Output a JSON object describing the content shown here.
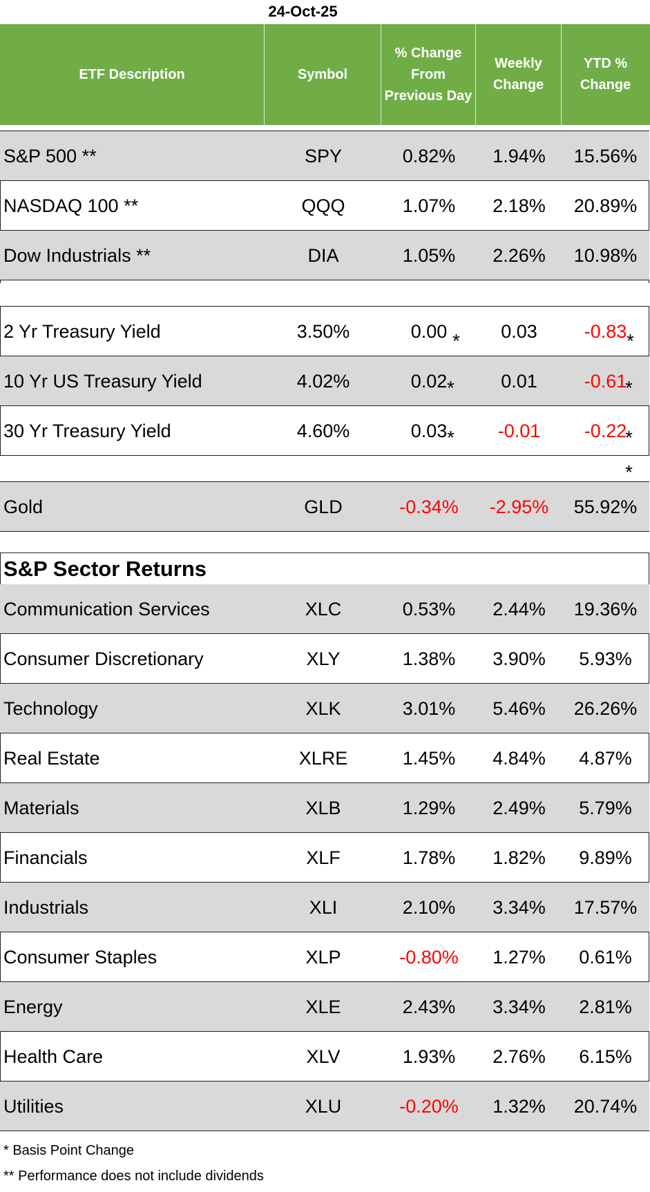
{
  "date": "24-Oct-25",
  "headers": {
    "description": "ETF Description",
    "symbol": "Symbol",
    "pct_change": "% Change\nFrom\nPrevious Day",
    "weekly": "Weekly\nChange",
    "ytd": "YTD %\nChange"
  },
  "indices": [
    {
      "name": "S&P 500 **",
      "symbol": "SPY",
      "day": "0.82%",
      "week": "1.94%",
      "ytd": "15.56%"
    },
    {
      "name": "NASDAQ 100 **",
      "symbol": "QQQ",
      "day": "1.07%",
      "week": "2.18%",
      "ytd": "20.89%"
    },
    {
      "name": "Dow Industrials **",
      "symbol": "DIA",
      "day": "1.05%",
      "week": "2.26%",
      "ytd": "10.98%"
    }
  ],
  "treasuries": [
    {
      "name": "2 Yr Treasury Yield",
      "symbol": "3.50%",
      "day": "0.00",
      "week": "0.03",
      "ytd": "-0.83"
    },
    {
      "name": "10 Yr US Treasury Yield",
      "symbol": "4.02%",
      "day": "0.02",
      "week": "0.01",
      "ytd": "-0.61"
    },
    {
      "name": "30 Yr Treasury Yield",
      "symbol": "4.60%",
      "day": "0.03",
      "week": "-0.01",
      "ytd": "-0.22"
    }
  ],
  "asterisk": "*",
  "gold": {
    "name": "Gold",
    "symbol": "GLD",
    "day": "-0.34%",
    "week": "-2.95%",
    "ytd": "55.92%"
  },
  "sector_title": "S&P Sector Returns",
  "sectors": [
    {
      "name": "Communication Services",
      "symbol": "XLC",
      "day": "0.53%",
      "week": "2.44%",
      "ytd": "19.36%"
    },
    {
      "name": "Consumer Discretionary",
      "symbol": "XLY",
      "day": "1.38%",
      "week": "3.90%",
      "ytd": "5.93%"
    },
    {
      "name": "Technology",
      "symbol": "XLK",
      "day": "3.01%",
      "week": "5.46%",
      "ytd": "26.26%"
    },
    {
      "name": "Real Estate",
      "symbol": "XLRE",
      "day": "1.45%",
      "week": "4.84%",
      "ytd": "4.87%"
    },
    {
      "name": "Materials",
      "symbol": "XLB",
      "day": "1.29%",
      "week": "2.49%",
      "ytd": "5.79%"
    },
    {
      "name": "Financials",
      "symbol": "XLF",
      "day": "1.78%",
      "week": "1.82%",
      "ytd": "9.89%"
    },
    {
      "name": "Industrials",
      "symbol": "XLI",
      "day": "2.10%",
      "week": "3.34%",
      "ytd": "17.57%"
    },
    {
      "name": "Consumer Staples",
      "symbol": "XLP",
      "day": "-0.80%",
      "week": "1.27%",
      "ytd": "0.61%"
    },
    {
      "name": "Energy",
      "symbol": "XLE",
      "day": "2.43%",
      "week": "3.34%",
      "ytd": "2.81%"
    },
    {
      "name": "Health Care",
      "symbol": "XLV",
      "day": "1.93%",
      "week": "2.76%",
      "ytd": "6.15%"
    },
    {
      "name": "Utilities",
      "symbol": "XLU",
      "day": "-0.20%",
      "week": "1.32%",
      "ytd": "20.74%"
    }
  ],
  "footnotes": [
    "* Basis Point Change",
    "** Performance does not include dividends"
  ],
  "colors": {
    "header_bg": "#70ad47",
    "shade": "#d9d9d9",
    "negative": "#ff0000"
  }
}
